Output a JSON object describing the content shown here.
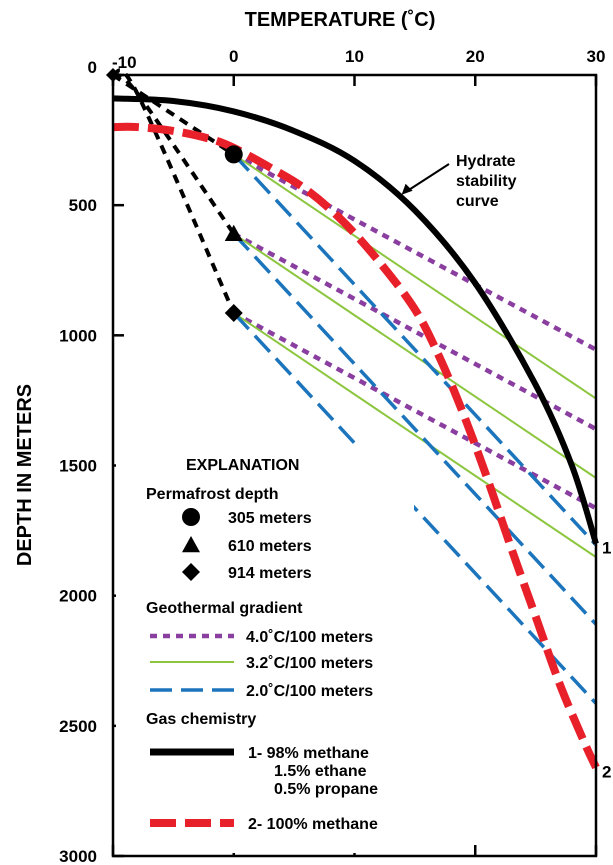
{
  "chart_data": {
    "type": "line",
    "title": "",
    "xlabel": "TEMPERATURE (˚C)",
    "ylabel": "DEPTH IN METERS",
    "xlim": [
      -10,
      30
    ],
    "ylim": [
      3000,
      0
    ],
    "xticks": [
      -10,
      0,
      10,
      20,
      30
    ],
    "yticks": [
      0,
      500,
      1000,
      1500,
      2000,
      2500,
      3000
    ],
    "tick_labels_x": [
      "-10",
      "0",
      "10",
      "20",
      "30"
    ],
    "tick_labels_y": [
      "0",
      "500",
      "1000",
      "1500",
      "2000",
      "2500",
      "3000"
    ],
    "grid": false,
    "annotation": {
      "text": [
        "Hydrate",
        "stability",
        "curve"
      ],
      "points_to": {
        "x": 13.9,
        "y": 460
      }
    },
    "curve_end_labels": [
      {
        "label": "1",
        "x": 30,
        "y": 1800
      },
      {
        "label": "2",
        "x": 30,
        "y": 2660
      }
    ],
    "series": [
      {
        "name": "1- 98% methane 1.5% ethane 0.5% propane",
        "group": "gas",
        "style": "solid-black",
        "x": [
          -10,
          -5,
          0,
          5,
          10,
          15,
          20,
          25,
          28,
          30
        ],
        "y": [
          90,
          100,
          140,
          215,
          330,
          520,
          800,
          1190,
          1500,
          1800
        ]
      },
      {
        "name": "2- 100% methane",
        "group": "gas",
        "style": "dashed-red",
        "x": [
          -10,
          -8,
          -5,
          -2,
          0,
          3,
          6,
          9,
          12,
          15,
          17,
          19,
          21,
          23,
          25,
          27,
          29,
          30
        ],
        "y": [
          200,
          200,
          215,
          245,
          280,
          355,
          440,
          560,
          715,
          900,
          1080,
          1300,
          1550,
          1820,
          2080,
          2340,
          2560,
          2660
        ]
      },
      {
        "name": "",
        "group": "permafrost-305",
        "style": "dashed-black",
        "x": [
          -10,
          0
        ],
        "y": [
          0,
          305
        ]
      },
      {
        "name": "",
        "group": "permafrost-610",
        "style": "dashed-black",
        "x": [
          -10,
          -8,
          0
        ],
        "y": [
          0,
          70,
          610
        ]
      },
      {
        "name": "",
        "group": "permafrost-914",
        "style": "dashed-black",
        "x": [
          -10,
          -8,
          0
        ],
        "y": [
          0,
          70,
          914
        ]
      },
      {
        "name": "",
        "group": "gradient-4.0",
        "style": "dotted-purple",
        "x": [
          0,
          30
        ],
        "y": [
          305,
          1055
        ]
      },
      {
        "name": "",
        "group": "gradient-4.0",
        "style": "dotted-purple",
        "x": [
          0,
          30
        ],
        "y": [
          610,
          1360
        ]
      },
      {
        "name": "",
        "group": "gradient-4.0",
        "style": "dotted-purple",
        "x": [
          0,
          30
        ],
        "y": [
          914,
          1664
        ]
      },
      {
        "name": "",
        "group": "gradient-3.2",
        "style": "solid-green",
        "x": [
          0,
          30
        ],
        "y": [
          305,
          1243
        ]
      },
      {
        "name": "",
        "group": "gradient-3.2",
        "style": "solid-green",
        "x": [
          0,
          30
        ],
        "y": [
          610,
          1548
        ]
      },
      {
        "name": "",
        "group": "gradient-3.2",
        "style": "solid-green",
        "x": [
          0,
          30
        ],
        "y": [
          914,
          1852
        ]
      },
      {
        "name": "",
        "group": "gradient-2.0",
        "style": "dashed-blue",
        "x": [
          0,
          30
        ],
        "y": [
          305,
          1805
        ]
      },
      {
        "name": "",
        "group": "gradient-2.0",
        "style": "dashed-blue",
        "x": [
          0,
          30
        ],
        "y": [
          610,
          2110
        ]
      },
      {
        "name": "",
        "group": "gradient-2.0",
        "style": "dashed-blue",
        "x": [
          0,
          30
        ],
        "y": [
          914,
          2414
        ]
      }
    ],
    "markers": [
      {
        "shape": "circle",
        "x": 0,
        "y": 305
      },
      {
        "shape": "triangle",
        "x": 0,
        "y": 610
      },
      {
        "shape": "diamond",
        "x": 0,
        "y": 914
      },
      {
        "shape": "diamond",
        "x": -10,
        "y": 0
      }
    ],
    "legend": {
      "placement": "bottom-left",
      "title": "EXPLANATION",
      "sections": [
        {
          "heading": "Permafrost depth",
          "items": [
            {
              "symbol": "circle",
              "label": "305 meters"
            },
            {
              "symbol": "triangle",
              "label": "610 meters"
            },
            {
              "symbol": "diamond",
              "label": "914 meters"
            }
          ]
        },
        {
          "heading": "Geothermal gradient",
          "items": [
            {
              "symbol": "dotted-purple",
              "label": "4.0˚C/100 meters"
            },
            {
              "symbol": "solid-green",
              "label": "3.2˚C/100 meters"
            },
            {
              "symbol": "dashed-blue",
              "label": "2.0˚C/100 meters"
            }
          ]
        },
        {
          "heading": "Gas chemistry",
          "items": [
            {
              "symbol": "solid-black",
              "label": [
                "1- 98% methane",
                "1.5% ethane",
                "0.5% propane"
              ]
            },
            {
              "symbol": "dashed-red",
              "label": [
                "2- 100% methane"
              ]
            }
          ]
        }
      ]
    },
    "colors": {
      "black": "#000000",
      "red": "#e8202a",
      "purple": "#8a3ea0",
      "green": "#8cc63f",
      "blue": "#1c75bc"
    }
  }
}
